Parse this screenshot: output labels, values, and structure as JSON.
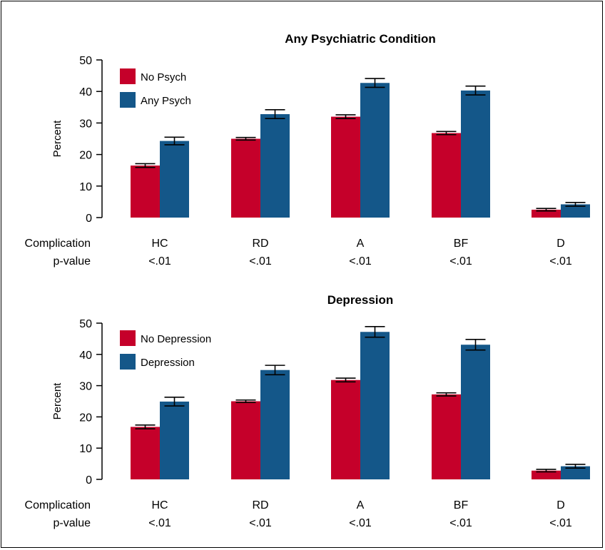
{
  "colors": {
    "series_a": "#c5002a",
    "series_b": "#145789",
    "axis": "#000000"
  },
  "chart_data": [
    {
      "type": "bar",
      "title": "Any Psychiatric Condition",
      "ylabel": "Percent",
      "ylim": [
        0,
        50
      ],
      "yticks": [
        0,
        10,
        20,
        30,
        40,
        50
      ],
      "row_labels": [
        "Complication",
        "p-value"
      ],
      "categories": [
        "HC",
        "RD",
        "A",
        "BF",
        "D"
      ],
      "pvalues": [
        "<.01",
        "<.01",
        "<.01",
        "<.01",
        "<.01"
      ],
      "legend_position": "top-left",
      "series": [
        {
          "name": "No Psych",
          "values": [
            16.5,
            25.0,
            32.0,
            26.8,
            2.5
          ],
          "err": [
            0.6,
            0.4,
            0.6,
            0.5,
            0.4
          ]
        },
        {
          "name": "Any Psych",
          "values": [
            24.3,
            32.8,
            42.7,
            40.3,
            4.2
          ],
          "err": [
            1.2,
            1.4,
            1.4,
            1.4,
            0.6
          ]
        }
      ]
    },
    {
      "type": "bar",
      "title": "Depression",
      "ylabel": "Percent",
      "ylim": [
        0,
        50
      ],
      "yticks": [
        0,
        10,
        20,
        30,
        40,
        50
      ],
      "row_labels": [
        "Complication",
        "p-value"
      ],
      "categories": [
        "HC",
        "RD",
        "A",
        "BF",
        "D"
      ],
      "pvalues": [
        "<.01",
        "<.01",
        "<.01",
        "<.01",
        "<.01"
      ],
      "legend_position": "top-left",
      "series": [
        {
          "name": "No Depression",
          "values": [
            16.8,
            25.0,
            31.8,
            27.2,
            2.8
          ],
          "err": [
            0.6,
            0.4,
            0.6,
            0.5,
            0.4
          ]
        },
        {
          "name": "Depression",
          "values": [
            24.9,
            35.0,
            47.2,
            43.1,
            4.2
          ],
          "err": [
            1.4,
            1.5,
            1.7,
            1.7,
            0.6
          ]
        }
      ]
    }
  ]
}
